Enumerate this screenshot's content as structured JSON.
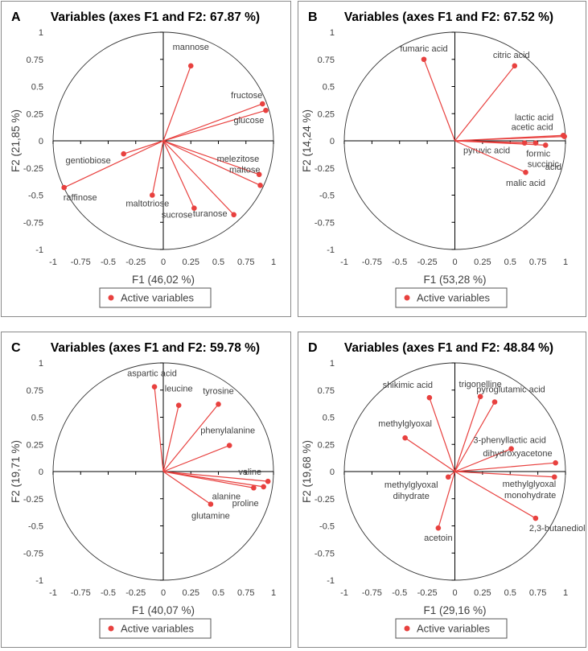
{
  "legend_label": "Active variables",
  "colors": {
    "series": "#e8413f",
    "axis": "#000000",
    "text": "#404040"
  },
  "chart_data": [
    {
      "panel_letter": "A",
      "type": "scatter",
      "title": "Variables (axes F1 and F2: 67.87 %)",
      "xlabel": "F1 (46,02 %)",
      "ylabel": "F2 (21,85 %)",
      "xlim": [
        -1,
        1
      ],
      "ylim": [
        -1,
        1
      ],
      "x_ticks": [
        "-1",
        "-0.75",
        "-0.5",
        "-0.25",
        "0",
        "0.25",
        "0.5",
        "0.75",
        "1"
      ],
      "y_ticks": [
        "1",
        "0.75",
        "0.5",
        "0.25",
        "0",
        "-0.25",
        "-0.5",
        "-0.75",
        "-1"
      ],
      "legend": "bottom",
      "series": [
        {
          "name": "Active variables",
          "points": [
            {
              "label": "mannose",
              "x": 0.25,
              "y": 0.69
            },
            {
              "label": "fructose",
              "x": 0.9,
              "y": 0.34
            },
            {
              "label": "glucose",
              "x": 0.93,
              "y": 0.28
            },
            {
              "label": "melezitose",
              "x": 0.87,
              "y": -0.31
            },
            {
              "label": "maltose",
              "x": 0.88,
              "y": -0.41
            },
            {
              "label": "turanose",
              "x": 0.64,
              "y": -0.68
            },
            {
              "label": "sucrose",
              "x": 0.28,
              "y": -0.62
            },
            {
              "label": "maltotriose",
              "x": -0.1,
              "y": -0.5
            },
            {
              "label": "gentiobiose",
              "x": -0.36,
              "y": -0.12
            },
            {
              "label": "raffinose",
              "x": -0.9,
              "y": -0.43
            }
          ]
        }
      ]
    },
    {
      "panel_letter": "B",
      "type": "scatter",
      "title": "Variables (axes F1 and F2: 67.52 %)",
      "xlabel": "F1 (53,28 %)",
      "ylabel": "F2 (14,24 %)",
      "xlim": [
        -1,
        1
      ],
      "ylim": [
        -1,
        1
      ],
      "x_ticks": [
        "-1",
        "-0.75",
        "-0.5",
        "-0.25",
        "0",
        "0.25",
        "0.5",
        "0.75",
        "1"
      ],
      "y_ticks": [
        "1",
        "0.75",
        "0.5",
        "0.25",
        "0",
        "-0.25",
        "-0.5",
        "-0.75",
        "-1"
      ],
      "legend": "bottom",
      "series": [
        {
          "name": "Active variables",
          "points": [
            {
              "label": "fumaric acid",
              "x": -0.28,
              "y": 0.75
            },
            {
              "label": "citric acid",
              "x": 0.54,
              "y": 0.69
            },
            {
              "label": "lactic acid",
              "x": 0.98,
              "y": 0.05
            },
            {
              "label": "acetic acid",
              "x": 0.99,
              "y": 0.04
            },
            {
              "label": "formic",
              "x": 0.82,
              "y": -0.04
            },
            {
              "label": "succinic",
              "x": 0.73,
              "y": -0.02
            },
            {
              "label": "acid",
              "x": 0,
              "y": 0
            },
            {
              "label": "pyruvic acid",
              "x": 0.63,
              "y": -0.02
            },
            {
              "label": "malic acid",
              "x": 0.64,
              "y": -0.29
            }
          ]
        }
      ]
    },
    {
      "panel_letter": "C",
      "type": "scatter",
      "title": "Variables (axes F1 and F2: 59.78 %)",
      "xlabel": "F1 (40,07 %)",
      "ylabel": "F2 (19,71 %)",
      "xlim": [
        -1,
        1
      ],
      "ylim": [
        -1,
        1
      ],
      "x_ticks": [
        "-1",
        "-0.75",
        "-0.5",
        "-0.25",
        "0",
        "0.25",
        "0.5",
        "0.75",
        "1"
      ],
      "y_ticks": [
        "1",
        "0.75",
        "0.5",
        "0.25",
        "0",
        "-0.25",
        "-0.5",
        "-0.75",
        "-1"
      ],
      "legend": "bottom",
      "series": [
        {
          "name": "Active variables",
          "points": [
            {
              "label": "aspartic acid",
              "x": -0.08,
              "y": 0.78
            },
            {
              "label": "leucine",
              "x": 0.14,
              "y": 0.61
            },
            {
              "label": "tyrosine",
              "x": 0.5,
              "y": 0.62
            },
            {
              "label": "phenylalanine",
              "x": 0.6,
              "y": 0.24
            },
            {
              "label": "valine",
              "x": 0.95,
              "y": -0.09
            },
            {
              "label": "alanine",
              "x": 0.82,
              "y": -0.15
            },
            {
              "label": "proline",
              "x": 0.91,
              "y": -0.14
            },
            {
              "label": "glutamine",
              "x": 0.43,
              "y": -0.3
            }
          ]
        }
      ]
    },
    {
      "panel_letter": "D",
      "type": "scatter",
      "title": "Variables (axes F1 and F2: 48.84 %)",
      "xlabel": "F1 (29,16 %)",
      "ylabel": "F2 (19,68 %)",
      "xlim": [
        -1,
        1
      ],
      "ylim": [
        -1,
        1
      ],
      "x_ticks": [
        "-1",
        "-0.75",
        "-0.5",
        "-0.25",
        "0",
        "0.25",
        "0.5",
        "0.75",
        "1"
      ],
      "y_ticks": [
        "1",
        "0.75",
        "0.5",
        "0.25",
        "0",
        "-0.25",
        "-0.5",
        "-0.75",
        "-1"
      ],
      "legend": "bottom",
      "series": [
        {
          "name": "Active variables",
          "points": [
            {
              "label": "shikimic acid",
              "x": -0.23,
              "y": 0.68
            },
            {
              "label": "trigonelline",
              "x": 0.23,
              "y": 0.69
            },
            {
              "label": "pyroglutamic acid",
              "x": 0.36,
              "y": 0.64
            },
            {
              "label": "methylglyoxal",
              "x": -0.45,
              "y": 0.31
            },
            {
              "label": "3-phenyllactic acid",
              "x": 0.51,
              "y": 0.21
            },
            {
              "label": "dihydroxyacetone",
              "x": 0.91,
              "y": 0.08
            },
            {
              "label": "methylglyoxal monohydrate",
              "x": 0.9,
              "y": -0.05
            },
            {
              "label": "methylglyoxal dihydrate",
              "x": -0.06,
              "y": -0.05
            },
            {
              "label": "2,3-butanediol",
              "x": 0.73,
              "y": -0.43
            },
            {
              "label": "acetoin",
              "x": -0.15,
              "y": -0.52
            }
          ]
        }
      ]
    }
  ]
}
